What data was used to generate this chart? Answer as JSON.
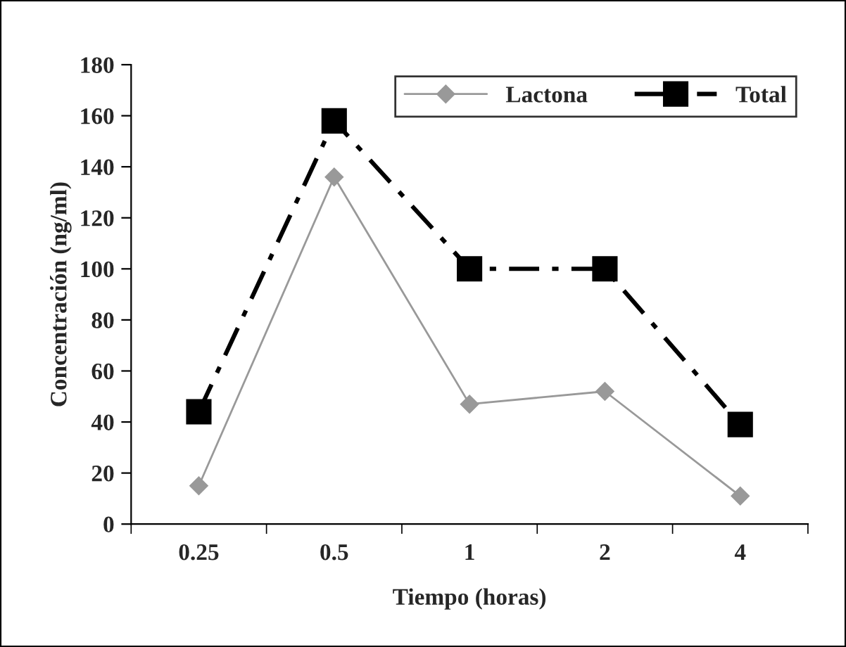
{
  "chart_data": {
    "type": "line",
    "xlabel": "Tiempo (horas)",
    "ylabel": "Concentración (ng/ml)",
    "categories": [
      "0.25",
      "0.5",
      "1",
      "2",
      "4"
    ],
    "series": [
      {
        "name": "Lactona",
        "color": "#999999",
        "values": [
          15,
          136,
          47,
          52,
          11
        ],
        "marker": "diamond",
        "line_style": "solid"
      },
      {
        "name": "Total",
        "color": "#000000",
        "values": [
          44,
          158,
          100,
          100,
          39
        ],
        "marker": "square",
        "line_style": "dashed"
      }
    ],
    "ylim": [
      0,
      180
    ],
    "yticks": [
      0,
      20,
      40,
      60,
      80,
      100,
      120,
      140,
      160,
      180
    ],
    "grid": false,
    "legend": "top right"
  }
}
